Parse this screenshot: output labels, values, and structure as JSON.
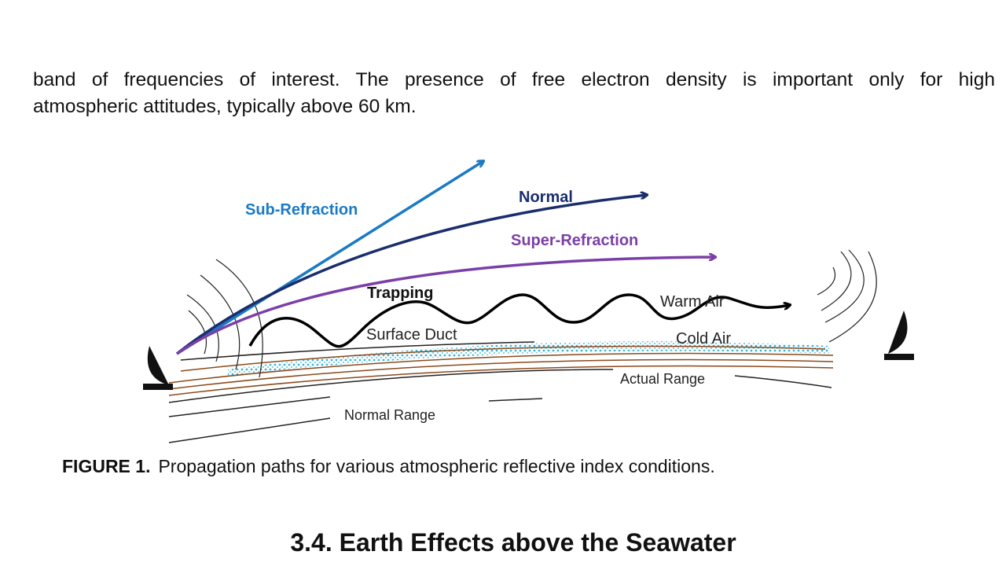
{
  "paragraph": {
    "lines": [
      "band of frequencies of interest. The presence of free electron density is important only for high",
      "atmospheric attitudes, typically above 60 km."
    ]
  },
  "figure": {
    "labels": [
      "Sub-Refraction",
      "Normal",
      "Super-Refraction",
      "Trapping",
      "Warm Air",
      "Surface Duct",
      "Cold Air",
      "Actual Range",
      "Normal Range"
    ]
  },
  "caption": {
    "label": "FIGURE 1.",
    "text": "Propagation paths for various atmospheric reflective index conditions."
  },
  "heading": "3.4. Earth Effects above the Seawater"
}
